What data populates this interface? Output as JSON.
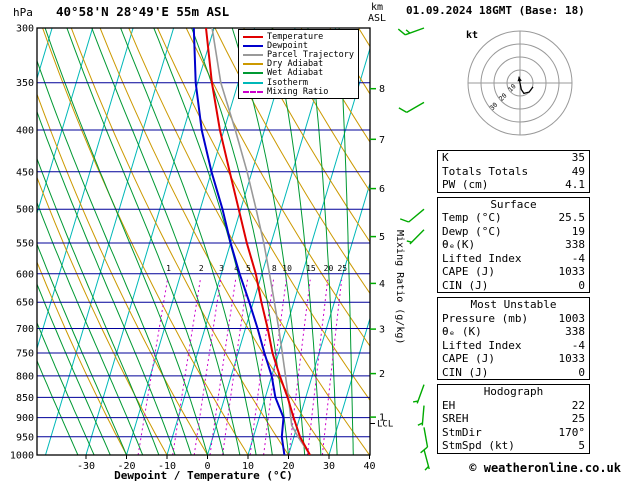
{
  "header": {
    "left_axis_unit": "hPa",
    "station": "40°58'N 28°49'E 55m ASL",
    "right_axis_unit_top": "km",
    "right_axis_unit_bottom": "ASL",
    "datetime": "01.09.2024 18GMT (Base: 18)"
  },
  "legend": [
    {
      "label": "Temperature",
      "color": "#e00000",
      "style": "solid"
    },
    {
      "label": "Dewpoint",
      "color": "#0000cc",
      "style": "solid"
    },
    {
      "label": "Parcel Trajectory",
      "color": "#999999",
      "style": "solid"
    },
    {
      "label": "Dry Adiabat",
      "color": "#cc9900",
      "style": "solid"
    },
    {
      "label": "Wet Adiabat",
      "color": "#009933",
      "style": "solid"
    },
    {
      "label": "Isotherm",
      "color": "#00b8b8",
      "style": "solid"
    },
    {
      "label": "Mixing Ratio",
      "color": "#cc00cc",
      "style": "dashed"
    }
  ],
  "colors": {
    "isotherm": "#00b8b8",
    "dry_adiabat": "#cc9900",
    "wet_adiabat": "#009933",
    "mixing_ratio": "#cc00cc",
    "pressure_grid": "#000099",
    "temperature": "#e00000",
    "dewpoint": "#0000cc",
    "parcel": "#999999",
    "wind": "#00aa00",
    "frame": "#000000"
  },
  "axes": {
    "pressure_ticks": [
      300,
      350,
      400,
      450,
      500,
      550,
      600,
      650,
      700,
      750,
      800,
      850,
      900,
      950,
      1000
    ],
    "temp_ticks": [
      -30,
      -20,
      -10,
      0,
      10,
      20,
      30,
      40
    ],
    "xlabel": "Dewpoint / Temperature (°C)",
    "km_ticks": [
      1,
      2,
      3,
      4,
      5,
      6,
      7,
      8
    ],
    "lcl_label": "LCL",
    "lcl_pressure": 915,
    "mixing_ratio_axis_label": "Mixing Ratio (g/kg)",
    "mixing_ratio_values": [
      1,
      2,
      3,
      4,
      5,
      8,
      10,
      15,
      20,
      25
    ]
  },
  "chart_data": {
    "type": "line",
    "title": "Skew-T log-p sounding 40°58'N 28°49'E 55m ASL 01.09.2024 18GMT",
    "xlabel": "Dewpoint / Temperature (°C)",
    "ylabel": "Pressure (hPa)",
    "x_range": [
      -40,
      40
    ],
    "y_range": [
      1000,
      300
    ],
    "y_scale": "log",
    "series": [
      {
        "name": "Temperature",
        "color": "#e00000",
        "width": 2,
        "points": [
          [
            1000,
            25.3
          ],
          [
            950,
            21.5
          ],
          [
            900,
            18.5
          ],
          [
            850,
            15.5
          ],
          [
            800,
            12.0
          ],
          [
            750,
            8.5
          ],
          [
            700,
            5.5
          ],
          [
            650,
            2.0
          ],
          [
            600,
            -1.5
          ],
          [
            550,
            -6.0
          ],
          [
            500,
            -10.5
          ],
          [
            450,
            -15.5
          ],
          [
            400,
            -21.0
          ],
          [
            350,
            -26.5
          ],
          [
            300,
            -32.0
          ]
        ]
      },
      {
        "name": "Dewpoint",
        "color": "#0000cc",
        "width": 2,
        "points": [
          [
            1000,
            19.0
          ],
          [
            950,
            17.0
          ],
          [
            900,
            16.0
          ],
          [
            850,
            12.5
          ],
          [
            800,
            10.0
          ],
          [
            750,
            6.5
          ],
          [
            700,
            3.0
          ],
          [
            650,
            -1.0
          ],
          [
            600,
            -5.5
          ],
          [
            550,
            -10.0
          ],
          [
            500,
            -14.5
          ],
          [
            450,
            -20.0
          ],
          [
            400,
            -25.5
          ],
          [
            350,
            -30.5
          ],
          [
            300,
            -35.0
          ]
        ]
      },
      {
        "name": "Parcel Trajectory",
        "color": "#999999",
        "width": 1.6,
        "points": [
          [
            1000,
            25.3
          ],
          [
            950,
            21.0
          ],
          [
            920,
            18.6
          ],
          [
            900,
            17.8
          ],
          [
            850,
            15.7
          ],
          [
            800,
            13.4
          ],
          [
            750,
            10.9
          ],
          [
            700,
            8.2
          ],
          [
            650,
            5.2
          ],
          [
            600,
            1.9
          ],
          [
            550,
            -1.8
          ],
          [
            500,
            -6.2
          ],
          [
            450,
            -11.2
          ],
          [
            400,
            -17.2
          ],
          [
            350,
            -24.3
          ],
          [
            300,
            -30.5
          ]
        ]
      }
    ],
    "wind_barbs": [
      {
        "p": 300,
        "dir": 250,
        "kt": 15
      },
      {
        "p": 370,
        "dir": 240,
        "kt": 10
      },
      {
        "p": 500,
        "dir": 230,
        "kt": 10
      },
      {
        "p": 530,
        "dir": 225,
        "kt": 5
      },
      {
        "p": 820,
        "dir": 200,
        "kt": 5
      },
      {
        "p": 870,
        "dir": 185,
        "kt": 5
      },
      {
        "p": 925,
        "dir": 170,
        "kt": 10
      },
      {
        "p": 985,
        "dir": 165,
        "kt": 5
      }
    ]
  },
  "hodograph": {
    "unit": "kt",
    "rings": [
      10,
      20,
      30,
      40
    ],
    "ring_labels": [
      "10",
      "20",
      "30"
    ],
    "trace_kt": [
      [
        0,
        0
      ],
      [
        1,
        -5
      ],
      [
        3,
        -8
      ],
      [
        7,
        -7
      ],
      [
        10,
        -3
      ]
    ],
    "storm_dir_deg": 170,
    "storm_spd_kt": 5
  },
  "tables": {
    "indices": {
      "rows": [
        [
          "K",
          "35"
        ],
        [
          "Totals Totals",
          "49"
        ],
        [
          "PW (cm)",
          "4.1"
        ]
      ]
    },
    "surface": {
      "title": "Surface",
      "rows": [
        [
          "Temp (°C)",
          "25.5"
        ],
        [
          "Dewp (°C)",
          "19"
        ],
        [
          "θₑ(K)",
          "338"
        ],
        [
          "Lifted Index",
          "-4"
        ],
        [
          "CAPE (J)",
          "1033"
        ],
        [
          "CIN (J)",
          "0"
        ]
      ]
    },
    "most_unstable": {
      "title": "Most Unstable",
      "rows": [
        [
          "Pressure (mb)",
          "1003"
        ],
        [
          "θₑ (K)",
          "338"
        ],
        [
          "Lifted Index",
          "-4"
        ],
        [
          "CAPE (J)",
          "1033"
        ],
        [
          "CIN (J)",
          "0"
        ]
      ]
    },
    "hodograph": {
      "title": "Hodograph",
      "rows": [
        [
          "EH",
          "22"
        ],
        [
          "SREH",
          "25"
        ],
        [
          "StmDir",
          "170°"
        ],
        [
          "StmSpd (kt)",
          "5"
        ]
      ]
    }
  },
  "footer": {
    "copyright": "© weatheronline.co.uk"
  }
}
